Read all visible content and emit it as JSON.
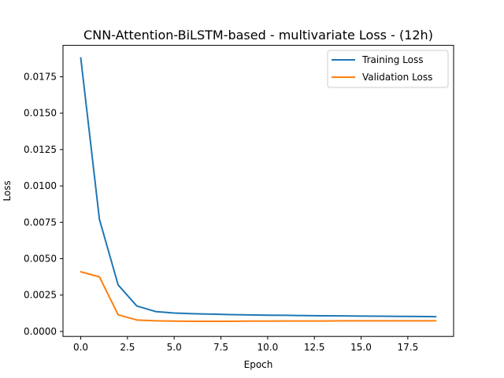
{
  "chart_data": {
    "type": "line",
    "title": "CNN-Attention-BiLSTM-based - multivariate Loss - (12h)",
    "xlabel": "Epoch",
    "ylabel": "Loss",
    "x": [
      0,
      1,
      2,
      3,
      4,
      5,
      6,
      7,
      8,
      9,
      10,
      11,
      12,
      13,
      14,
      15,
      16,
      17,
      18,
      19
    ],
    "series": [
      {
        "name": "Training Loss",
        "color": "#1f77b4",
        "values": [
          0.0188,
          0.0077,
          0.0032,
          0.00175,
          0.00137,
          0.00127,
          0.00122,
          0.00119,
          0.00116,
          0.00114,
          0.00112,
          0.00111,
          0.00109,
          0.00108,
          0.00107,
          0.00106,
          0.00105,
          0.00104,
          0.00103,
          0.00102
        ]
      },
      {
        "name": "Validation Loss",
        "color": "#ff7f0e",
        "values": [
          0.0041,
          0.00375,
          0.00115,
          0.00079,
          0.00073,
          0.00071,
          0.0007,
          0.0007,
          0.0007,
          0.00071,
          0.00071,
          0.00072,
          0.00072,
          0.00072,
          0.00073,
          0.00073,
          0.00073,
          0.00073,
          0.00073,
          0.00073
        ]
      }
    ],
    "xticks": [
      "0.0",
      "2.5",
      "5.0",
      "7.5",
      "10.0",
      "12.5",
      "15.0",
      "17.5"
    ],
    "yticks": [
      "0.0000",
      "0.0025",
      "0.0050",
      "0.0075",
      "0.0100",
      "0.0125",
      "0.0150",
      "0.0175"
    ],
    "xlim": [
      -0.95,
      19.95
    ],
    "ylim": [
      -0.00034,
      0.01966
    ],
    "grid": false,
    "legend": "top-right"
  }
}
